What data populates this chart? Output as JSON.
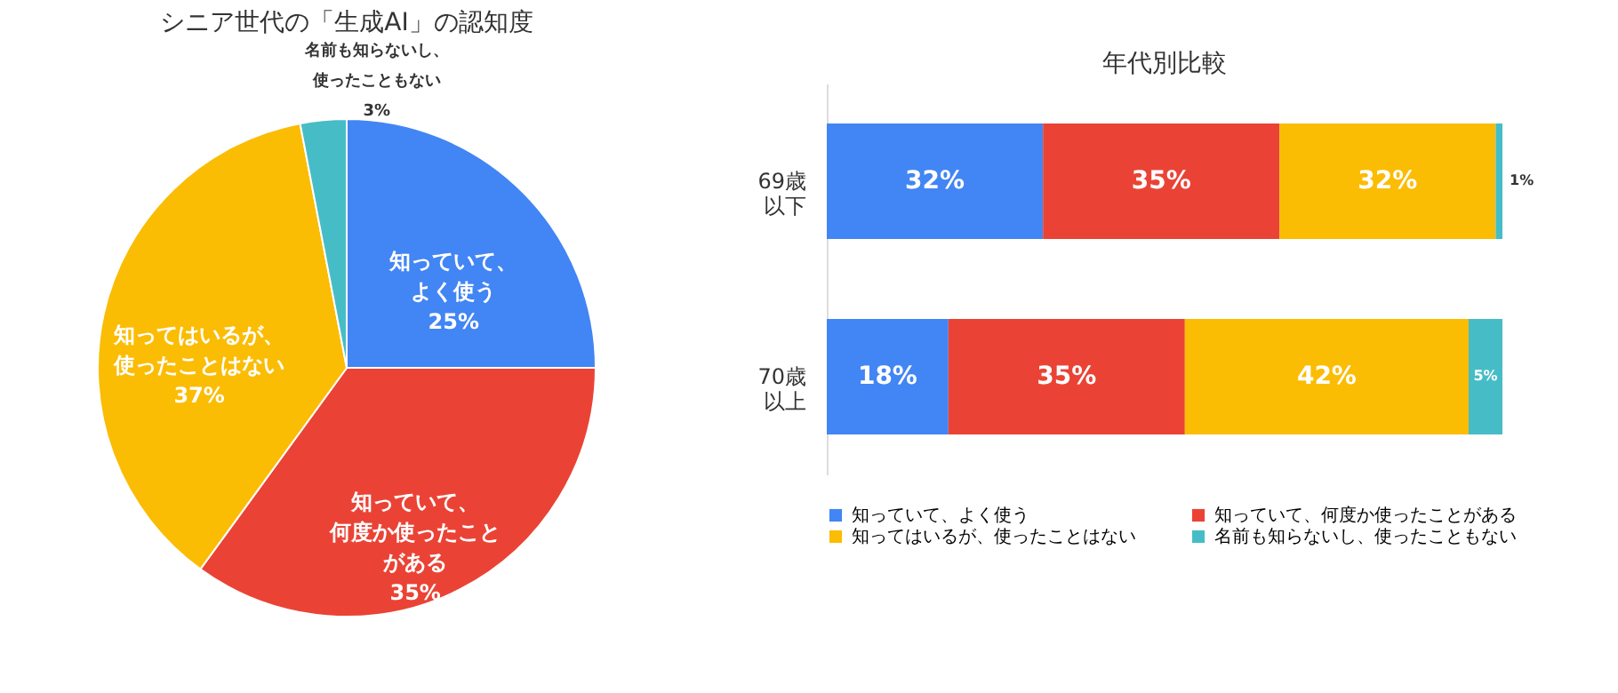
{
  "chart_data": [
    {
      "type": "pie",
      "title": "シニア世代の「生成AI」の認知度",
      "categories": [
        "知っていて、よく使う",
        "知っていて、何度か使ったことがある",
        "知ってはいるが、使ったことはない",
        "名前も知らないし、使ったこともない"
      ],
      "values": [
        25,
        35,
        37,
        3
      ],
      "colors": [
        "#4285f4",
        "#ea4335",
        "#fbbc04",
        "#46bdc6"
      ],
      "value_labels": [
        "25%",
        "35%",
        "37%",
        "3%"
      ]
    },
    {
      "type": "bar",
      "title": "年代別比較",
      "orientation": "horizontal",
      "stacked": true,
      "categories": [
        "69歳以下",
        "70歳以上"
      ],
      "tick_labels": "y",
      "legend": "bottom",
      "series": [
        {
          "name": "知っていて、よく使う",
          "color": "#4285f4",
          "values": [
            32,
            18
          ],
          "value_labels": [
            "32%",
            "18%"
          ]
        },
        {
          "name": "知っていて、何度か使ったことがある",
          "color": "#ea4335",
          "values": [
            35,
            35
          ],
          "value_labels": [
            "35%",
            "35%"
          ]
        },
        {
          "name": "知ってはいるが、使ったことはない",
          "color": "#fbbc04",
          "values": [
            32,
            42
          ],
          "value_labels": [
            "32%",
            "42%"
          ]
        },
        {
          "name": "名前も知らないし、使ったこともない",
          "color": "#46bdc6",
          "values": [
            1,
            5
          ],
          "value_labels": [
            "1%",
            "5%"
          ]
        }
      ]
    }
  ]
}
